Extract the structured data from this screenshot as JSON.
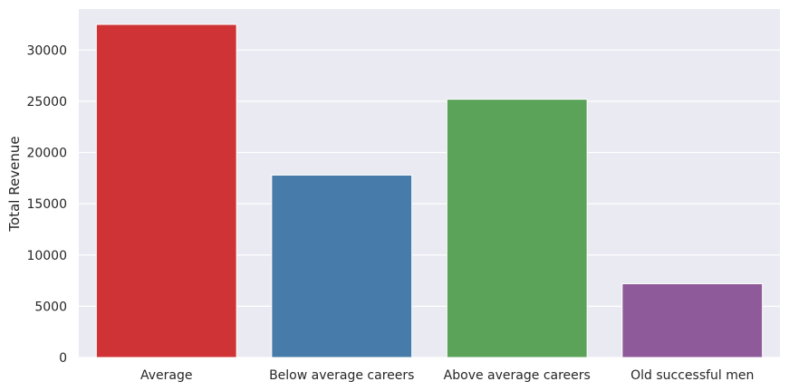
{
  "chart_data": {
    "type": "bar",
    "categories": [
      "Average",
      "Below average careers",
      "Above average careers",
      "Old successful men"
    ],
    "values": [
      32500,
      17800,
      25200,
      7200
    ],
    "colors": [
      "#d03335",
      "#477caa",
      "#5ba358",
      "#8f5a99"
    ],
    "title": "",
    "xlabel": "",
    "ylabel": "Total Revenue",
    "ylim": [
      0,
      34000
    ],
    "yticks": [
      0,
      5000,
      10000,
      15000,
      20000,
      25000,
      30000
    ],
    "ytick_labels": [
      "0",
      "5000",
      "10000",
      "15000",
      "20000",
      "25000",
      "30000"
    ],
    "grid": true,
    "background": "#eaeaf2",
    "grid_color": "#ffffff"
  }
}
